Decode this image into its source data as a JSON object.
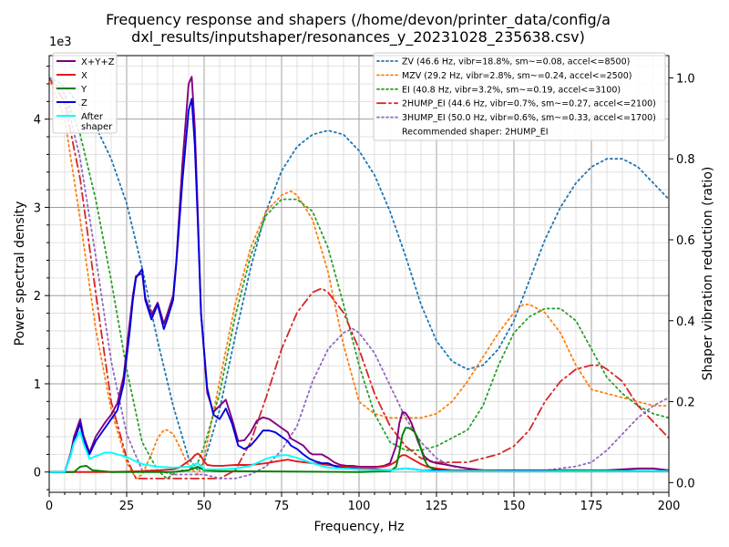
{
  "chart_data": {
    "type": "line",
    "title": [
      "Frequency response and shapers (/home/devon/printer_data/config/a",
      "dxl_results/inputshaper/resonances_y_20231028_235638.csv)"
    ],
    "xlabel": "Frequency, Hz",
    "ylabel": "Power spectral density",
    "ylabel2": "Shaper vibration reduction (ratio)",
    "y_multiplier": "1e3",
    "xlim": [
      0,
      200
    ],
    "ylim": [
      -0.23,
      4.72
    ],
    "ylim2": [
      -0.024,
      1.055
    ],
    "grid": true,
    "x_ticks": [
      "0",
      "25",
      "50",
      "75",
      "100",
      "125",
      "150",
      "175",
      "200"
    ],
    "y_ticks": [
      "0",
      "1",
      "2",
      "3",
      "4"
    ],
    "y2_ticks": [
      "0.0",
      "0.2",
      "0.4",
      "0.6",
      "0.8",
      "1.0"
    ],
    "legend_left_placement": "upper-left",
    "legend_right_placement": "upper-right",
    "psd_series": [
      {
        "name": "X+Y+Z",
        "color": "#800080",
        "x": [
          0,
          5,
          7,
          8,
          10,
          11,
          13,
          15,
          18,
          20,
          22,
          24,
          26,
          27,
          28,
          30,
          31,
          33,
          35,
          37,
          38,
          40,
          41,
          43,
          45,
          46,
          47,
          48,
          49,
          51,
          53,
          55,
          57,
          59,
          61,
          63,
          65,
          67,
          69,
          71,
          73,
          75,
          77,
          78,
          80,
          82,
          84,
          85,
          88,
          90,
          92,
          94,
          96,
          98,
          100,
          102,
          104,
          106,
          108,
          110,
          112,
          113,
          114,
          115,
          116,
          117,
          119,
          121,
          123,
          125,
          127,
          130,
          135,
          140,
          150,
          160,
          170,
          180,
          190,
          195,
          200
        ],
        "y": [
          0,
          0,
          0.22,
          0.4,
          0.6,
          0.42,
          0.22,
          0.4,
          0.56,
          0.65,
          0.78,
          1.08,
          1.7,
          2.0,
          2.22,
          2.25,
          1.98,
          1.78,
          1.92,
          1.68,
          1.78,
          2.0,
          2.38,
          3.5,
          4.4,
          4.48,
          3.9,
          2.9,
          1.8,
          0.9,
          0.68,
          0.75,
          0.82,
          0.6,
          0.35,
          0.36,
          0.45,
          0.58,
          0.62,
          0.6,
          0.55,
          0.5,
          0.45,
          0.38,
          0.34,
          0.3,
          0.22,
          0.2,
          0.2,
          0.16,
          0.11,
          0.08,
          0.07,
          0.07,
          0.06,
          0.06,
          0.06,
          0.06,
          0.07,
          0.1,
          0.3,
          0.55,
          0.68,
          0.67,
          0.62,
          0.55,
          0.35,
          0.18,
          0.12,
          0.1,
          0.09,
          0.07,
          0.04,
          0.02,
          0.02,
          0.02,
          0.02,
          0.02,
          0.04,
          0.04,
          0.02
        ]
      },
      {
        "name": "X",
        "color": "#e41a1c",
        "x": [
          0,
          10,
          20,
          30,
          35,
          40,
          42,
          44,
          46,
          47,
          48,
          49,
          50,
          51,
          53,
          56,
          60,
          65,
          70,
          75,
          77,
          80,
          85,
          88,
          90,
          95,
          100,
          105,
          108,
          110,
          112,
          113,
          114,
          115,
          116,
          118,
          120,
          122,
          125,
          130,
          140,
          150,
          160,
          170,
          180,
          190,
          200
        ],
        "y": [
          0,
          0,
          0,
          0.01,
          0.02,
          0.03,
          0.05,
          0.1,
          0.15,
          0.19,
          0.21,
          0.18,
          0.12,
          0.08,
          0.07,
          0.07,
          0.08,
          0.08,
          0.1,
          0.13,
          0.14,
          0.12,
          0.1,
          0.09,
          0.08,
          0.06,
          0.05,
          0.05,
          0.06,
          0.08,
          0.12,
          0.17,
          0.19,
          0.19,
          0.17,
          0.13,
          0.09,
          0.06,
          0.04,
          0.02,
          0.02,
          0.01,
          0.01,
          0.01,
          0.01,
          0.01,
          0.01
        ]
      },
      {
        "name": "Y",
        "color": "#008000",
        "x": [
          0,
          8,
          10,
          12,
          14,
          20,
          40,
          45,
          48,
          50,
          55,
          60,
          100,
          110,
          112,
          113,
          114,
          115,
          116,
          117,
          118,
          119,
          120,
          121,
          122,
          123,
          125,
          130,
          140,
          160,
          165,
          170,
          200
        ],
        "y": [
          0,
          0,
          0.06,
          0.07,
          0.02,
          0,
          0,
          0.02,
          0.06,
          0.02,
          0.01,
          0.01,
          0,
          0.01,
          0.06,
          0.22,
          0.42,
          0.5,
          0.5,
          0.48,
          0.45,
          0.38,
          0.26,
          0.15,
          0.08,
          0.05,
          0.02,
          0.01,
          0.01,
          0.01,
          0.02,
          0.02,
          0.01
        ]
      },
      {
        "name": "Z",
        "color": "#0000dd",
        "x": [
          0,
          5,
          7,
          8,
          10,
          11,
          13,
          15,
          18,
          20,
          22,
          24,
          26,
          27,
          28,
          30,
          31,
          33,
          35,
          37,
          38,
          40,
          41,
          43,
          45,
          46,
          47,
          48,
          49,
          51,
          53,
          55,
          57,
          59,
          61,
          63,
          65,
          67,
          69,
          71,
          73,
          75,
          77,
          78,
          80,
          82,
          84,
          86,
          88,
          90,
          92,
          94,
          96,
          98,
          100,
          105,
          110,
          112,
          115,
          118,
          120,
          125,
          130,
          140,
          150,
          160,
          170,
          180,
          190,
          200
        ],
        "y": [
          0,
          0,
          0.2,
          0.35,
          0.55,
          0.38,
          0.2,
          0.35,
          0.5,
          0.6,
          0.7,
          1.0,
          1.6,
          1.95,
          2.2,
          2.3,
          1.95,
          1.73,
          1.9,
          1.62,
          1.72,
          1.95,
          2.35,
          3.3,
          4.1,
          4.23,
          3.7,
          2.8,
          1.8,
          0.95,
          0.65,
          0.6,
          0.72,
          0.55,
          0.3,
          0.26,
          0.3,
          0.38,
          0.47,
          0.47,
          0.45,
          0.4,
          0.35,
          0.3,
          0.26,
          0.2,
          0.15,
          0.12,
          0.1,
          0.1,
          0.07,
          0.05,
          0.04,
          0.04,
          0.03,
          0.03,
          0.02,
          0.03,
          0.04,
          0.03,
          0.02,
          0.02,
          0.01,
          0.01,
          0.01,
          0.01,
          0.01,
          0.01,
          0.01,
          0.01
        ]
      },
      {
        "name": "After\nshaper",
        "color": "#00ffff",
        "x": [
          0,
          5,
          7,
          8,
          10,
          11,
          13,
          15,
          18,
          20,
          22,
          25,
          28,
          30,
          35,
          40,
          45,
          48,
          50,
          55,
          60,
          65,
          70,
          72,
          75,
          77,
          80,
          85,
          90,
          100,
          110,
          115,
          120,
          125,
          130,
          140,
          160,
          180,
          200
        ],
        "y": [
          0,
          0,
          0.2,
          0.33,
          0.46,
          0.33,
          0.15,
          0.18,
          0.22,
          0.22,
          0.2,
          0.17,
          0.12,
          0.09,
          0.06,
          0.05,
          0.06,
          0.1,
          0.03,
          0.03,
          0.04,
          0.07,
          0.15,
          0.17,
          0.19,
          0.19,
          0.16,
          0.1,
          0.05,
          0.03,
          0.02,
          0.04,
          0.02,
          0.01,
          0.01,
          0.01,
          0.01,
          0.01,
          0.01
        ]
      }
    ],
    "shaper_series": [
      {
        "name": "ZV (46.6 Hz, vibr=18.8%, sm~=0.08, accel<=8500)",
        "color": "#1f77b4",
        "x": [
          0,
          3,
          6,
          10,
          15,
          20,
          25,
          30,
          35,
          40,
          45,
          48,
          50,
          55,
          60,
          65,
          70,
          75,
          80,
          85,
          90,
          95,
          100,
          105,
          110,
          115,
          120,
          125,
          130,
          135,
          140,
          145,
          150,
          155,
          160,
          165,
          170,
          175,
          180,
          185,
          190,
          195,
          200
        ],
        "y": [
          1.0,
          0.99,
          0.97,
          0.93,
          0.88,
          0.8,
          0.69,
          0.53,
          0.35,
          0.19,
          0.06,
          0.03,
          0.05,
          0.18,
          0.36,
          0.53,
          0.67,
          0.77,
          0.83,
          0.86,
          0.87,
          0.86,
          0.82,
          0.76,
          0.67,
          0.56,
          0.44,
          0.35,
          0.3,
          0.28,
          0.29,
          0.33,
          0.4,
          0.5,
          0.6,
          0.68,
          0.74,
          0.78,
          0.8,
          0.8,
          0.78,
          0.74,
          0.7
        ]
      },
      {
        "name": "MZV (29.2 Hz, vibr=2.8%, sm~=0.24, accel<=2500)",
        "color": "#ff7f0e",
        "x": [
          0,
          5,
          10,
          15,
          20,
          25,
          28,
          30,
          33,
          35,
          37,
          38,
          40,
          42,
          45,
          48,
          50,
          55,
          60,
          65,
          70,
          75,
          78,
          80,
          85,
          90,
          95,
          100,
          105,
          110,
          115,
          120,
          125,
          130,
          135,
          140,
          145,
          150,
          153,
          155,
          160,
          165,
          170,
          175,
          180,
          185,
          190,
          195,
          200
        ],
        "y": [
          1.0,
          0.9,
          0.65,
          0.38,
          0.18,
          0.05,
          0.01,
          0.02,
          0.07,
          0.11,
          0.13,
          0.13,
          0.12,
          0.09,
          0.04,
          0.02,
          0.06,
          0.25,
          0.44,
          0.58,
          0.67,
          0.71,
          0.72,
          0.71,
          0.65,
          0.52,
          0.34,
          0.2,
          0.17,
          0.16,
          0.16,
          0.16,
          0.17,
          0.2,
          0.25,
          0.31,
          0.37,
          0.42,
          0.44,
          0.44,
          0.42,
          0.37,
          0.29,
          0.23,
          0.22,
          0.21,
          0.2,
          0.19,
          0.19
        ]
      },
      {
        "name": "EI (40.8 Hz, vibr=3.2%, sm~=0.19, accel<=3100)",
        "color": "#2ca02c",
        "x": [
          0,
          5,
          10,
          15,
          20,
          25,
          30,
          35,
          38,
          40,
          42,
          45,
          48,
          50,
          55,
          60,
          65,
          70,
          75,
          78,
          80,
          85,
          90,
          95,
          100,
          105,
          110,
          115,
          120,
          125,
          130,
          135,
          140,
          145,
          150,
          155,
          160,
          165,
          170,
          175,
          180,
          185,
          190,
          195,
          200
        ],
        "y": [
          1.0,
          0.96,
          0.86,
          0.7,
          0.5,
          0.28,
          0.1,
          0.03,
          0.01,
          0.02,
          0.03,
          0.03,
          0.05,
          0.09,
          0.22,
          0.41,
          0.56,
          0.66,
          0.7,
          0.7,
          0.7,
          0.67,
          0.58,
          0.44,
          0.29,
          0.17,
          0.1,
          0.08,
          0.08,
          0.09,
          0.11,
          0.13,
          0.19,
          0.29,
          0.37,
          0.41,
          0.43,
          0.43,
          0.4,
          0.33,
          0.26,
          0.22,
          0.19,
          0.17,
          0.16
        ]
      },
      {
        "name": "2HUMP_EI (44.6 Hz, vibr=0.7%, sm~=0.27, accel<=2100)",
        "color": "#d62728",
        "dash": "9,4,2,4",
        "x": [
          0,
          5,
          10,
          15,
          20,
          25,
          28,
          30,
          35,
          40,
          45,
          50,
          55,
          60,
          65,
          70,
          75,
          80,
          85,
          88,
          90,
          95,
          100,
          105,
          110,
          115,
          120,
          125,
          130,
          135,
          140,
          145,
          150,
          155,
          160,
          165,
          170,
          175,
          178,
          180,
          185,
          190,
          195,
          200
        ],
        "y": [
          1.0,
          0.94,
          0.75,
          0.47,
          0.2,
          0.06,
          0.01,
          0.01,
          0.01,
          0.01,
          0.01,
          0.01,
          0.01,
          0.03,
          0.1,
          0.21,
          0.33,
          0.42,
          0.47,
          0.48,
          0.47,
          0.42,
          0.33,
          0.22,
          0.14,
          0.09,
          0.06,
          0.05,
          0.05,
          0.05,
          0.06,
          0.07,
          0.09,
          0.13,
          0.2,
          0.25,
          0.28,
          0.29,
          0.29,
          0.28,
          0.25,
          0.19,
          0.15,
          0.11
        ]
      },
      {
        "name": "3HUMP_EI (50.0 Hz, vibr=0.6%, sm~=0.33, accel<=1700)",
        "color": "#9467bd",
        "x": [
          0,
          5,
          10,
          15,
          20,
          25,
          30,
          35,
          40,
          45,
          50,
          55,
          60,
          65,
          70,
          75,
          80,
          85,
          90,
          95,
          98,
          100,
          105,
          110,
          115,
          120,
          125,
          130,
          140,
          150,
          160,
          170,
          175,
          180,
          185,
          190,
          195,
          200
        ],
        "y": [
          1.0,
          0.96,
          0.8,
          0.56,
          0.3,
          0.12,
          0.03,
          0.03,
          0.02,
          0.02,
          0.02,
          0.01,
          0.01,
          0.02,
          0.04,
          0.08,
          0.14,
          0.25,
          0.33,
          0.37,
          0.38,
          0.37,
          0.32,
          0.24,
          0.16,
          0.1,
          0.06,
          0.04,
          0.03,
          0.03,
          0.03,
          0.04,
          0.05,
          0.08,
          0.12,
          0.16,
          0.19,
          0.21
        ]
      }
    ],
    "recommended_text": "Recommended shaper: 2HUMP_EI"
  }
}
